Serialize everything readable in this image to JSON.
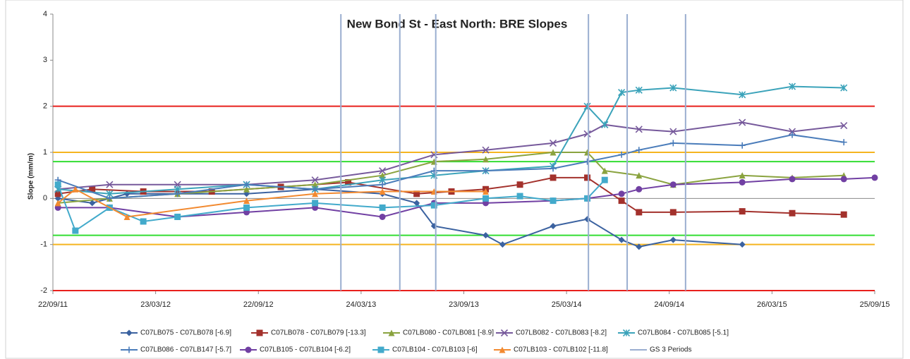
{
  "chart_data": {
    "type": "line",
    "title": "New Bond St - East North: BRE Slopes",
    "y_label": "Slope (mm/m)",
    "xlim": [
      "22/09/11",
      "25/09/15"
    ],
    "xticks": [
      "22/09/11",
      "23/03/12",
      "22/09/12",
      "24/03/13",
      "23/09/13",
      "25/03/14",
      "24/09/14",
      "26/03/15",
      "25/09/15"
    ],
    "ylim": [
      -2,
      4
    ],
    "yticks": [
      -2,
      -1,
      0,
      1,
      2,
      3,
      4
    ],
    "reference_lines": [
      {
        "value": 2,
        "color": "#e8201c"
      },
      {
        "value": -2,
        "color": "#e8201c"
      },
      {
        "value": 1,
        "color": "#f5b520"
      },
      {
        "value": -1,
        "color": "#f5b520"
      },
      {
        "value": 0.8,
        "color": "#33dd33"
      },
      {
        "value": -0.8,
        "color": "#33dd33"
      }
    ],
    "series": [
      {
        "name": "C07LB075 - C07LB078  [-6.9]",
        "color": "#3b62a0",
        "marker": "diamond",
        "x": [
          "01/10/11",
          "01/12/11",
          "01/02/12",
          "01/05/12",
          "01/09/12",
          "01/01/13",
          "01/05/13",
          "01/07/13",
          "01/08/13",
          "01/11/13",
          "01/12/13",
          "01/03/14",
          "01/05/14",
          "01/07/14",
          "01/08/14",
          "01/10/14",
          "01/02/15"
        ],
        "values": [
          0,
          -0.1,
          0.1,
          0.1,
          0.1,
          0.2,
          0.1,
          -0.1,
          -0.6,
          -0.8,
          -1.0,
          -0.6,
          -0.45,
          -0.9,
          -1.05,
          -0.9,
          -1.0
        ]
      },
      {
        "name": "C07LB078 - C07LB079  [-13.3]",
        "color": "#a3312c",
        "marker": "square",
        "x": [
          "01/10/11",
          "01/12/11",
          "01/03/12",
          "01/07/12",
          "01/11/12",
          "01/03/13",
          "01/07/13",
          "01/09/13",
          "01/11/13",
          "01/01/14",
          "01/03/14",
          "01/05/14",
          "01/07/14",
          "01/08/14",
          "01/10/14",
          "01/02/15",
          "01/05/15",
          "01/08/15"
        ],
        "values": [
          0.1,
          0.2,
          0.15,
          0.15,
          0.25,
          0.35,
          0.1,
          0.15,
          0.2,
          0.3,
          0.45,
          0.45,
          -0.05,
          -0.3,
          -0.3,
          -0.28,
          -0.32,
          -0.35
        ]
      },
      {
        "name": "C07LB080 - C07LB081  [-8.9]",
        "color": "#8aa33f",
        "marker": "triangle",
        "x": [
          "01/10/11",
          "01/01/12",
          "01/05/12",
          "01/09/12",
          "01/01/13",
          "01/05/13",
          "01/08/13",
          "01/11/13",
          "01/03/14",
          "01/05/14",
          "01/06/14",
          "01/08/14",
          "01/10/14",
          "01/02/15",
          "01/05/15",
          "01/08/15"
        ],
        "values": [
          -0.1,
          0,
          0.1,
          0.2,
          0.3,
          0.5,
          0.8,
          0.85,
          1.0,
          1.0,
          0.6,
          0.5,
          0.3,
          0.5,
          0.45,
          0.5
        ]
      },
      {
        "name": "C07LB082 - C07LB083  [-8.2]",
        "color": "#76599b",
        "marker": "x",
        "x": [
          "01/10/11",
          "01/01/12",
          "01/05/12",
          "01/09/12",
          "01/01/13",
          "01/05/13",
          "01/08/13",
          "01/11/13",
          "01/03/14",
          "01/05/14",
          "01/06/14",
          "01/08/14",
          "01/10/14",
          "01/02/15",
          "01/05/15",
          "01/08/15"
        ],
        "values": [
          0.2,
          0.3,
          0.3,
          0.3,
          0.4,
          0.6,
          0.95,
          1.05,
          1.2,
          1.4,
          1.6,
          1.5,
          1.45,
          1.65,
          1.45,
          1.58
        ]
      },
      {
        "name": "C07LB084 - C07LB085  [-5.1]",
        "color": "#3ba3ba",
        "marker": "star",
        "x": [
          "01/10/11",
          "01/01/12",
          "01/05/12",
          "01/09/12",
          "01/01/13",
          "01/05/13",
          "01/08/13",
          "01/11/13",
          "01/03/14",
          "01/05/14",
          "01/06/14",
          "01/07/14",
          "01/08/14",
          "01/10/14",
          "01/02/15",
          "01/05/15",
          "01/08/15"
        ],
        "values": [
          0.2,
          0.1,
          0.2,
          0.3,
          0.2,
          0.4,
          0.5,
          0.6,
          0.7,
          2.0,
          1.6,
          2.3,
          2.35,
          2.4,
          2.25,
          2.43,
          2.4
        ]
      },
      {
        "name": "C07LB086 - C07LB147  [-5.7]",
        "color": "#4a7cba",
        "marker": "plus",
        "x": [
          "01/10/11",
          "01/01/12",
          "01/05/12",
          "01/09/12",
          "01/01/13",
          "01/05/13",
          "01/08/13",
          "01/11/13",
          "01/03/14",
          "01/05/14",
          "01/07/14",
          "01/08/14",
          "01/10/14",
          "01/02/15",
          "01/05/15",
          "01/08/15"
        ],
        "values": [
          0.4,
          0,
          0.1,
          0.3,
          0.2,
          0.3,
          0.6,
          0.6,
          0.65,
          0.8,
          0.95,
          1.05,
          1.2,
          1.15,
          1.38,
          1.22
        ]
      },
      {
        "name": "C07LB105 - C07LB104  [-6.2]",
        "color": "#7140a3",
        "marker": "circle",
        "x": [
          "01/10/11",
          "01/01/12",
          "01/05/12",
          "01/09/12",
          "01/01/13",
          "01/05/13",
          "01/08/13",
          "01/11/13",
          "01/03/14",
          "01/05/14",
          "01/07/14",
          "01/08/14",
          "01/10/14",
          "01/02/15",
          "01/05/15",
          "01/08/15",
          "25/09/15"
        ],
        "values": [
          -0.2,
          -0.2,
          -0.4,
          -0.3,
          -0.2,
          -0.4,
          -0.1,
          -0.1,
          -0.05,
          0,
          0.1,
          0.2,
          0.3,
          0.35,
          0.42,
          0.42,
          0.45
        ]
      },
      {
        "name": "C07LB104 - C07LB103  [-6]",
        "color": "#42aacb",
        "marker": "square",
        "x": [
          "01/10/11",
          "01/11/11",
          "01/01/12",
          "01/03/12",
          "01/05/12",
          "01/09/12",
          "01/01/13",
          "01/05/13",
          "01/08/13",
          "01/11/13",
          "01/01/14",
          "01/03/14",
          "01/05/14",
          "01/06/14"
        ],
        "values": [
          0.3,
          -0.7,
          -0.2,
          -0.5,
          -0.4,
          -0.2,
          -0.1,
          -0.2,
          -0.15,
          0,
          0.05,
          -0.05,
          0,
          0.4
        ]
      },
      {
        "name": "C07LB103 - C07LB102  [-11.8]",
        "color": "#f28a30",
        "marker": "triangle",
        "x": [
          "01/10/11",
          "01/11/11",
          "01/02/12",
          "01/09/12",
          "01/01/13",
          "01/05/13",
          "01/08/13",
          "01/11/13"
        ],
        "values": [
          -0.1,
          0.2,
          -0.4,
          -0.05,
          0.1,
          0.15,
          0.15,
          0.15
        ]
      },
      {
        "name": "GS 3 Periods",
        "color": "#9aaed0",
        "marker": "vline",
        "x": [
          "16/02/13",
          "01/06/13",
          "04/08/13",
          "03/05/14",
          "11/07/14",
          "23/10/14"
        ]
      }
    ]
  }
}
